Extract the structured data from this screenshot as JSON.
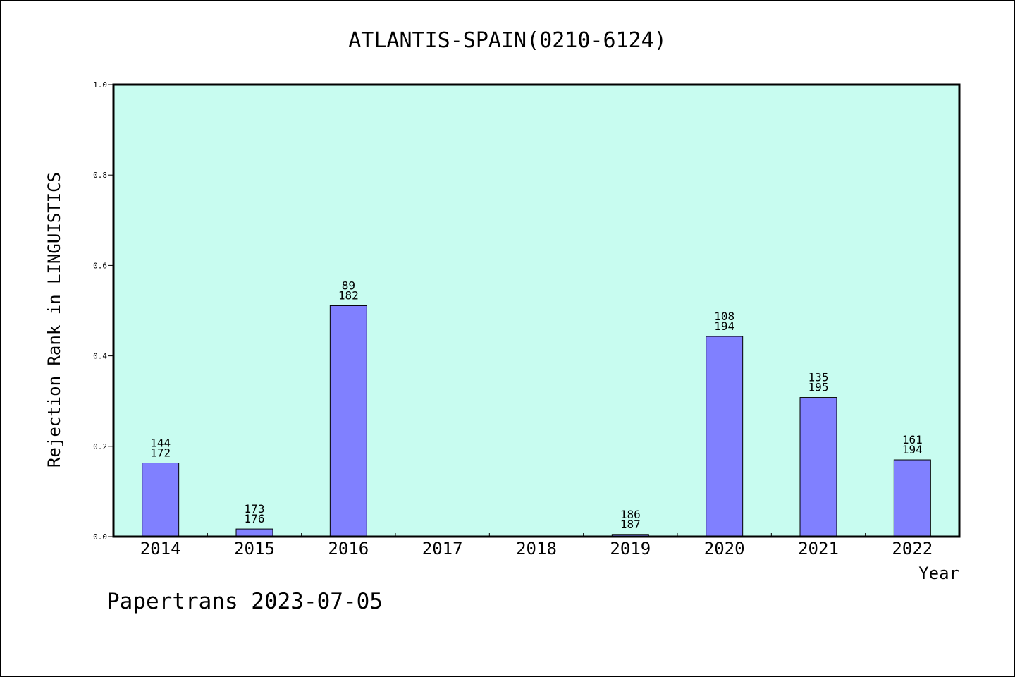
{
  "footer": {
    "text": "Papertrans 2023-07-05"
  },
  "colors": {
    "plot_background": "#c8fcf0",
    "bar_fill": "#8080ff",
    "axis": "#000000"
  },
  "chart_data": {
    "type": "bar",
    "title": "ATLANTIS-SPAIN(0210-6124)",
    "xlabel": "Year",
    "ylabel": "Rejection Rank in LINGUISTICS",
    "ylim": [
      0,
      1.0
    ],
    "yticks": [
      "0.0",
      "0.2",
      "0.4",
      "0.6",
      "0.8",
      "1.0"
    ],
    "grid": false,
    "categories": [
      "2014",
      "2015",
      "2016",
      "2017",
      "2018",
      "2019",
      "2020",
      "2021",
      "2022"
    ],
    "values": [
      0.163,
      0.017,
      0.511,
      null,
      null,
      0.005,
      0.443,
      0.308,
      0.17
    ],
    "label_top": [
      "144",
      "173",
      "89",
      "",
      "",
      "186",
      "108",
      "135",
      "161"
    ],
    "label_bottom": [
      "172",
      "176",
      "182",
      "",
      "",
      "187",
      "194",
      "195",
      "194"
    ]
  }
}
